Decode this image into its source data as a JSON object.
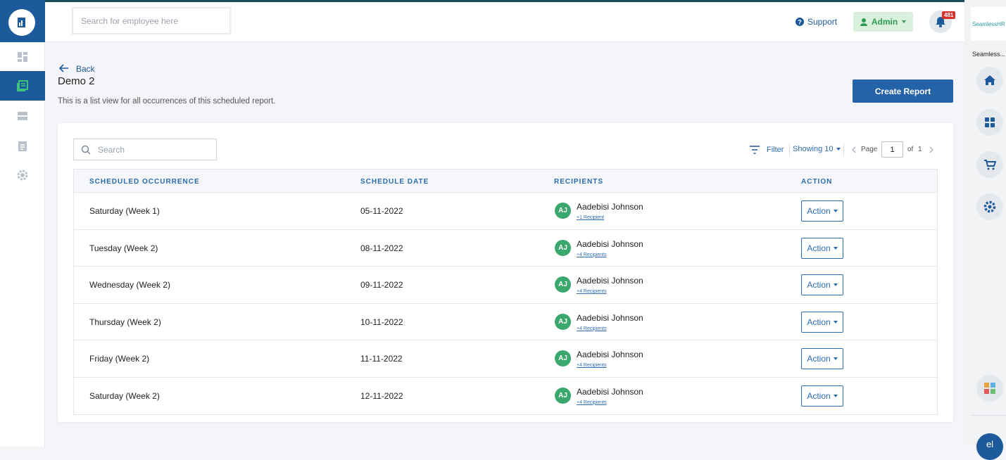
{
  "header": {
    "search_placeholder": "Search for employee here",
    "support": "Support",
    "user": "Admin",
    "notifications": "481"
  },
  "right_panel": {
    "brand": "SeamlessHR",
    "app_name": "Seamless...",
    "user_initials": "el"
  },
  "page": {
    "back": "Back",
    "title": "Demo 2",
    "description": "This is a list view for all occurrences of this scheduled report.",
    "create_button": "Create Report"
  },
  "toolbar": {
    "search_placeholder": "Search",
    "filter": "Filter",
    "showing": "Showing 10",
    "page_label": "Page",
    "page": "1",
    "of_label": "of",
    "total_pages": "1"
  },
  "table": {
    "columns": [
      "SCHEDULED OCCURRENCE",
      "SCHEDULE DATE",
      "RECIPIENTS",
      "ACTION"
    ],
    "rows": [
      {
        "occurrence": "Saturday (Week 1)",
        "date": "05-11-2022",
        "avatar": "AJ",
        "recipient": "Aadebisi Johnson",
        "more": "+1 Recipient",
        "action": "Action"
      },
      {
        "occurrence": "Tuesday (Week 2)",
        "date": "08-11-2022",
        "avatar": "AJ",
        "recipient": "Aadebisi Johnson",
        "more": "+4 Recipients",
        "action": "Action"
      },
      {
        "occurrence": "Wednesday (Week 2)",
        "date": "09-11-2022",
        "avatar": "AJ",
        "recipient": "Aadebisi Johnson",
        "more": "+4 Recipients",
        "action": "Action"
      },
      {
        "occurrence": "Thursday (Week 2)",
        "date": "10-11-2022",
        "avatar": "AJ",
        "recipient": "Aadebisi Johnson",
        "more": "+4 Recipients",
        "action": "Action"
      },
      {
        "occurrence": "Friday (Week 2)",
        "date": "11-11-2022",
        "avatar": "AJ",
        "recipient": "Aadebisi Johnson",
        "more": "+4 Recipients",
        "action": "Action"
      },
      {
        "occurrence": "Saturday (Week 2)",
        "date": "12-11-2022",
        "avatar": "AJ",
        "recipient": "Aadebisi Johnson",
        "more": "+4 Recipients",
        "action": "Action"
      }
    ]
  }
}
